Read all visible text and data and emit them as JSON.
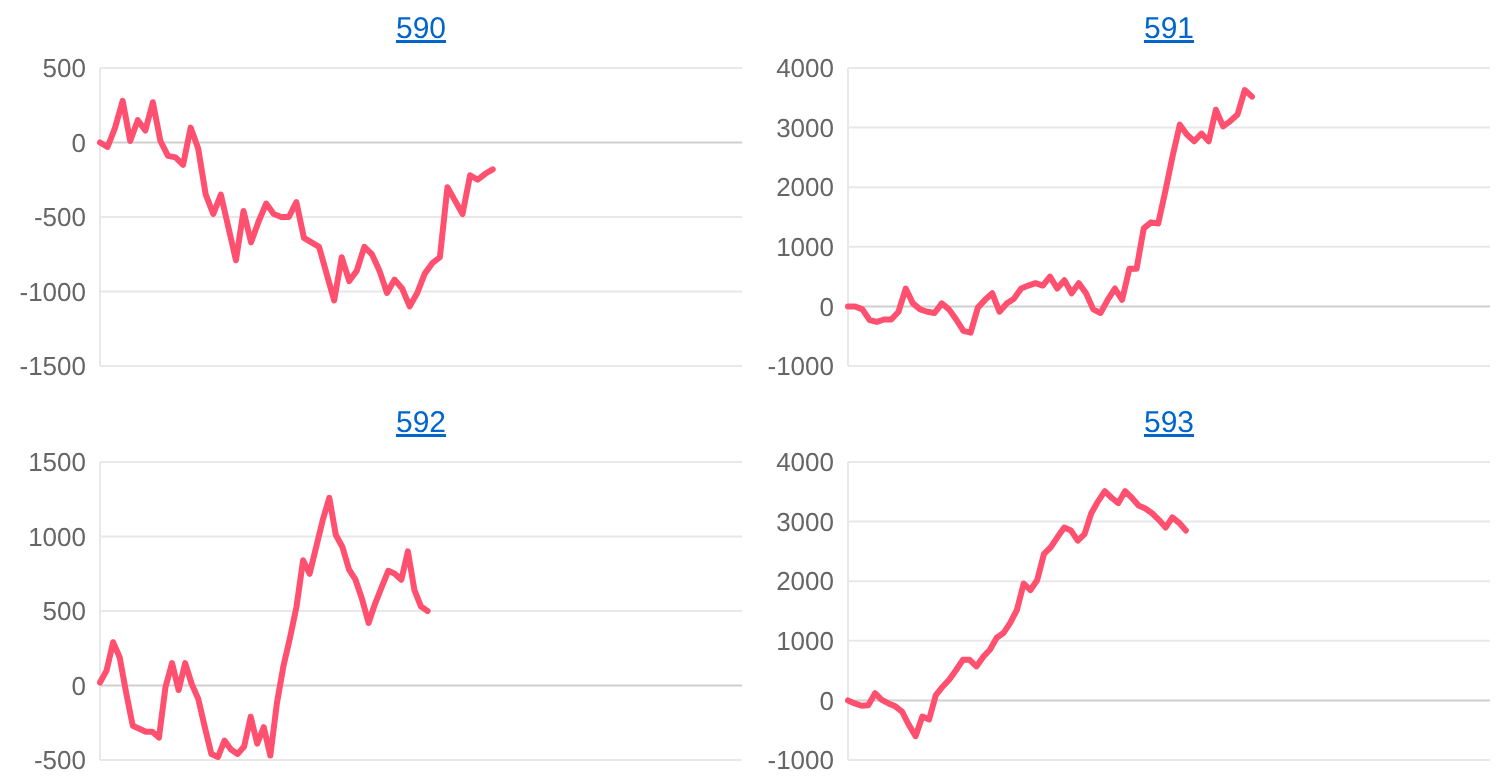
{
  "chart_data": [
    {
      "type": "line",
      "title": "590",
      "grid": "y",
      "ylim": [
        -1500,
        500
      ],
      "yticks": [
        -1500,
        -1000,
        -500,
        0,
        500
      ],
      "categories": [
        null,
        null,
        null,
        null,
        null,
        null,
        null,
        null,
        null,
        null,
        null,
        null,
        null,
        null,
        null,
        null,
        null,
        null,
        null,
        null,
        null,
        null,
        null,
        null,
        null,
        null,
        null,
        null,
        null,
        null,
        null,
        null,
        null,
        null,
        null,
        null,
        null,
        null,
        null,
        null,
        null,
        null,
        null,
        null,
        null,
        null,
        null,
        null,
        null,
        null,
        null,
        null,
        null,
        null,
        null,
        null,
        null,
        null,
        null,
        null,
        null,
        null,
        null,
        null,
        null,
        null,
        null,
        null,
        null,
        null,
        null,
        null,
        null,
        null,
        null,
        null,
        null,
        null,
        null,
        null,
        null,
        null,
        null,
        null,
        null,
        null
      ],
      "series": [
        {
          "color": "#ff5070",
          "values": [
            0,
            -30,
            100,
            280,
            10,
            150,
            80,
            270,
            10,
            -90,
            -100,
            -150,
            100,
            -40,
            -350,
            -480,
            -350,
            -570,
            -790,
            -460,
            -670,
            -530,
            -410,
            -480,
            -500,
            -500,
            -400,
            -640,
            -670,
            -700,
            -880,
            -1060,
            -770,
            -930,
            -860,
            -700,
            -750,
            -860,
            -1010,
            -920,
            -980,
            -1100,
            -1010,
            -880,
            -810,
            -770,
            -300,
            -390,
            -480,
            -220,
            -250,
            -210,
            -180,
            null,
            null,
            null,
            null,
            null,
            null,
            null,
            null,
            null,
            null,
            null,
            null,
            null,
            null,
            null,
            null,
            null,
            null,
            null,
            null,
            null,
            null,
            null,
            null,
            null,
            null,
            null,
            null,
            null,
            null,
            null,
            null,
            null
          ]
        }
      ]
    },
    {
      "type": "line",
      "title": "591",
      "grid": "y",
      "ylim": [
        -1000,
        4000
      ],
      "yticks": [
        -1000,
        0,
        1000,
        2000,
        3000,
        4000
      ],
      "categories": [
        null,
        null,
        null,
        null,
        null,
        null,
        null,
        null,
        null,
        null,
        null,
        null,
        null,
        null,
        null,
        null,
        null,
        null,
        null,
        null,
        null,
        null,
        null,
        null,
        null,
        null,
        null,
        null,
        null,
        null,
        null,
        null,
        null,
        null,
        null,
        null,
        null,
        null,
        null,
        null,
        null,
        null,
        null,
        null,
        null,
        null,
        null,
        null,
        null,
        null,
        null,
        null,
        null,
        null,
        null,
        null,
        null,
        null,
        null,
        null,
        null,
        null,
        null,
        null,
        null,
        null,
        null,
        null,
        null,
        null,
        null,
        null,
        null,
        null,
        null,
        null,
        null,
        null,
        null,
        null,
        null,
        null,
        null,
        null,
        null,
        null,
        null,
        null,
        null,
        null
      ],
      "series": [
        {
          "color": "#ff5070",
          "values": [
            0,
            0,
            -50,
            -230,
            -260,
            -220,
            -220,
            -90,
            300,
            50,
            -50,
            -90,
            -110,
            50,
            -50,
            -220,
            -410,
            -440,
            -20,
            110,
            220,
            -90,
            50,
            130,
            300,
            350,
            390,
            350,
            500,
            300,
            440,
            220,
            390,
            220,
            -50,
            -110,
            110,
            300,
            110,
            630,
            630,
            1310,
            1410,
            1390,
            1940,
            2520,
            3050,
            2880,
            2770,
            2900,
            2770,
            3300,
            3020,
            3110,
            3220,
            3630,
            3520,
            null,
            null,
            null,
            null,
            null,
            null,
            null,
            null,
            null,
            null,
            null,
            null,
            null,
            null,
            null,
            null,
            null,
            null,
            null,
            null,
            null,
            null,
            null,
            null,
            null,
            null,
            null,
            null,
            null,
            null,
            null,
            null,
            null
          ]
        }
      ]
    },
    {
      "type": "line",
      "title": "592",
      "grid": "y",
      "ylim": [
        -500,
        1500
      ],
      "yticks": [
        -500,
        0,
        500,
        1000,
        1500
      ],
      "categories": [
        null,
        null,
        null,
        null,
        null,
        null,
        null,
        null,
        null,
        null,
        null,
        null,
        null,
        null,
        null,
        null,
        null,
        null,
        null,
        null,
        null,
        null,
        null,
        null,
        null,
        null,
        null,
        null,
        null,
        null,
        null,
        null,
        null,
        null,
        null,
        null,
        null,
        null,
        null,
        null,
        null,
        null,
        null,
        null,
        null,
        null,
        null,
        null,
        null,
        null,
        null,
        null,
        null,
        null,
        null,
        null,
        null,
        null,
        null,
        null,
        null,
        null,
        null,
        null,
        null,
        null,
        null,
        null,
        null,
        null,
        null,
        null,
        null,
        null,
        null,
        null,
        null,
        null,
        null,
        null,
        null,
        null,
        null,
        null,
        null,
        null,
        null,
        null,
        null,
        null,
        null,
        null,
        null,
        null,
        null,
        null,
        null,
        null,
        null
      ],
      "series": [
        {
          "color": "#ff5070",
          "values": [
            20,
            100,
            290,
            190,
            -50,
            -270,
            -290,
            -310,
            -310,
            -350,
            -10,
            150,
            -30,
            150,
            10,
            -90,
            -280,
            -460,
            -480,
            -370,
            -430,
            -460,
            -410,
            -210,
            -390,
            -280,
            -470,
            -120,
            130,
            320,
            530,
            840,
            750,
            930,
            1110,
            1260,
            1010,
            930,
            780,
            710,
            580,
            420,
            550,
            660,
            770,
            750,
            710,
            900,
            640,
            530,
            500,
            null,
            null,
            null,
            null,
            null,
            null,
            null,
            null,
            null,
            null,
            null,
            null,
            null,
            null,
            null,
            null,
            null,
            null,
            null,
            null,
            null,
            null,
            null,
            null,
            null,
            null,
            null,
            null,
            null,
            null,
            null,
            null,
            null,
            null,
            null,
            null,
            null,
            null,
            null,
            null,
            null,
            null,
            null,
            null,
            null,
            null,
            null,
            null
          ]
        }
      ]
    },
    {
      "type": "line",
      "title": "593",
      "grid": "y",
      "ylim": [
        -1000,
        4000
      ],
      "yticks": [
        -1000,
        0,
        1000,
        2000,
        3000,
        4000
      ],
      "categories": [
        null,
        null,
        null,
        null,
        null,
        null,
        null,
        null,
        null,
        null,
        null,
        null,
        null,
        null,
        null,
        null,
        null,
        null,
        null,
        null,
        null,
        null,
        null,
        null,
        null,
        null,
        null,
        null,
        null,
        null,
        null,
        null,
        null,
        null,
        null,
        null,
        null,
        null,
        null,
        null,
        null,
        null,
        null,
        null,
        null,
        null,
        null,
        null,
        null,
        null,
        null,
        null,
        null,
        null,
        null,
        null,
        null,
        null,
        null,
        null,
        null,
        null,
        null,
        null,
        null,
        null,
        null,
        null,
        null,
        null,
        null,
        null,
        null,
        null,
        null,
        null,
        null,
        null,
        null,
        null,
        null,
        null,
        null,
        null,
        null,
        null,
        null,
        null,
        null,
        null,
        null,
        null,
        null,
        null,
        null,
        null
      ],
      "series": [
        {
          "color": "#ff5070",
          "values": [
            0,
            -50,
            -90,
            -80,
            120,
            10,
            -50,
            -100,
            -190,
            -410,
            -600,
            -270,
            -320,
            90,
            230,
            350,
            510,
            680,
            680,
            570,
            730,
            850,
            1050,
            1130,
            1300,
            1520,
            1960,
            1850,
            2020,
            2460,
            2570,
            2740,
            2900,
            2850,
            2680,
            2790,
            3140,
            3340,
            3510,
            3400,
            3310,
            3510,
            3400,
            3270,
            3220,
            3140,
            3030,
            2900,
            3070,
            2980,
            2850,
            null,
            null,
            null,
            null,
            null,
            null,
            null,
            null,
            null,
            null,
            null,
            null,
            null,
            null,
            null,
            null,
            null,
            null,
            null,
            null,
            null,
            null,
            null,
            null,
            null,
            null,
            null,
            null,
            null,
            null,
            null,
            null,
            null,
            null,
            null,
            null,
            null,
            null,
            null,
            null,
            null,
            null,
            null,
            null,
            null
          ]
        }
      ]
    }
  ]
}
